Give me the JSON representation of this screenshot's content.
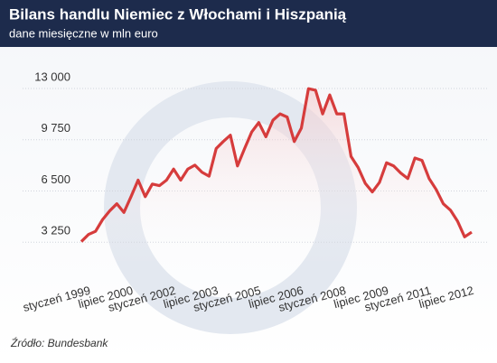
{
  "chart_data": {
    "type": "line",
    "title": "Bilans handlu Niemiec z Włochami i Hiszpanią",
    "subtitle": "dane miesięczne w mln euro",
    "source": "Źródło: Bundesbank",
    "categories": [
      "styczeń 1999",
      null,
      null,
      null,
      null,
      null,
      "lipiec 2000",
      null,
      null,
      null,
      null,
      null,
      "styczeń 2002",
      null,
      null,
      null,
      null,
      null,
      "lipiec 2003",
      null,
      null,
      null,
      null,
      null,
      "styczeń 2005",
      null,
      null,
      null,
      null,
      null,
      "lipiec 2006",
      null,
      null,
      null,
      null,
      null,
      "styczeń 2008",
      null,
      null,
      null,
      null,
      null,
      "lipiec 2009",
      null,
      null,
      null,
      null,
      null,
      "styczeń 2011",
      null,
      null,
      null,
      null,
      null,
      "lipiec 2012",
      null
    ],
    "series": [
      {
        "name": "Bilans",
        "color": "#d63c3c",
        "values": [
          2600,
          3050,
          3250,
          4000,
          4550,
          5000,
          4450,
          5450,
          6500,
          5450,
          6250,
          6150,
          6500,
          7200,
          6500,
          7200,
          7450,
          7000,
          6750,
          8500,
          8950,
          9350,
          7400,
          8500,
          9550,
          10150,
          9250,
          10300,
          10700,
          10500,
          8950,
          9800,
          12300,
          12200,
          10700,
          11900,
          10700,
          10700,
          8000,
          7300,
          6300,
          5750,
          6350,
          7600,
          7400,
          6950,
          6600,
          7900,
          7750,
          6600,
          5900,
          5000,
          4600,
          3900,
          2900,
          3200
        ]
      }
    ],
    "ylim": [
      1000,
      13600
    ],
    "yticks": [
      {
        "value": 3250,
        "label": "3 250"
      },
      {
        "value": 6500,
        "label": "6 500"
      },
      {
        "value": 9750,
        "label": "9 750"
      },
      {
        "value": 13000,
        "label": "13 000"
      }
    ],
    "grid": true
  }
}
